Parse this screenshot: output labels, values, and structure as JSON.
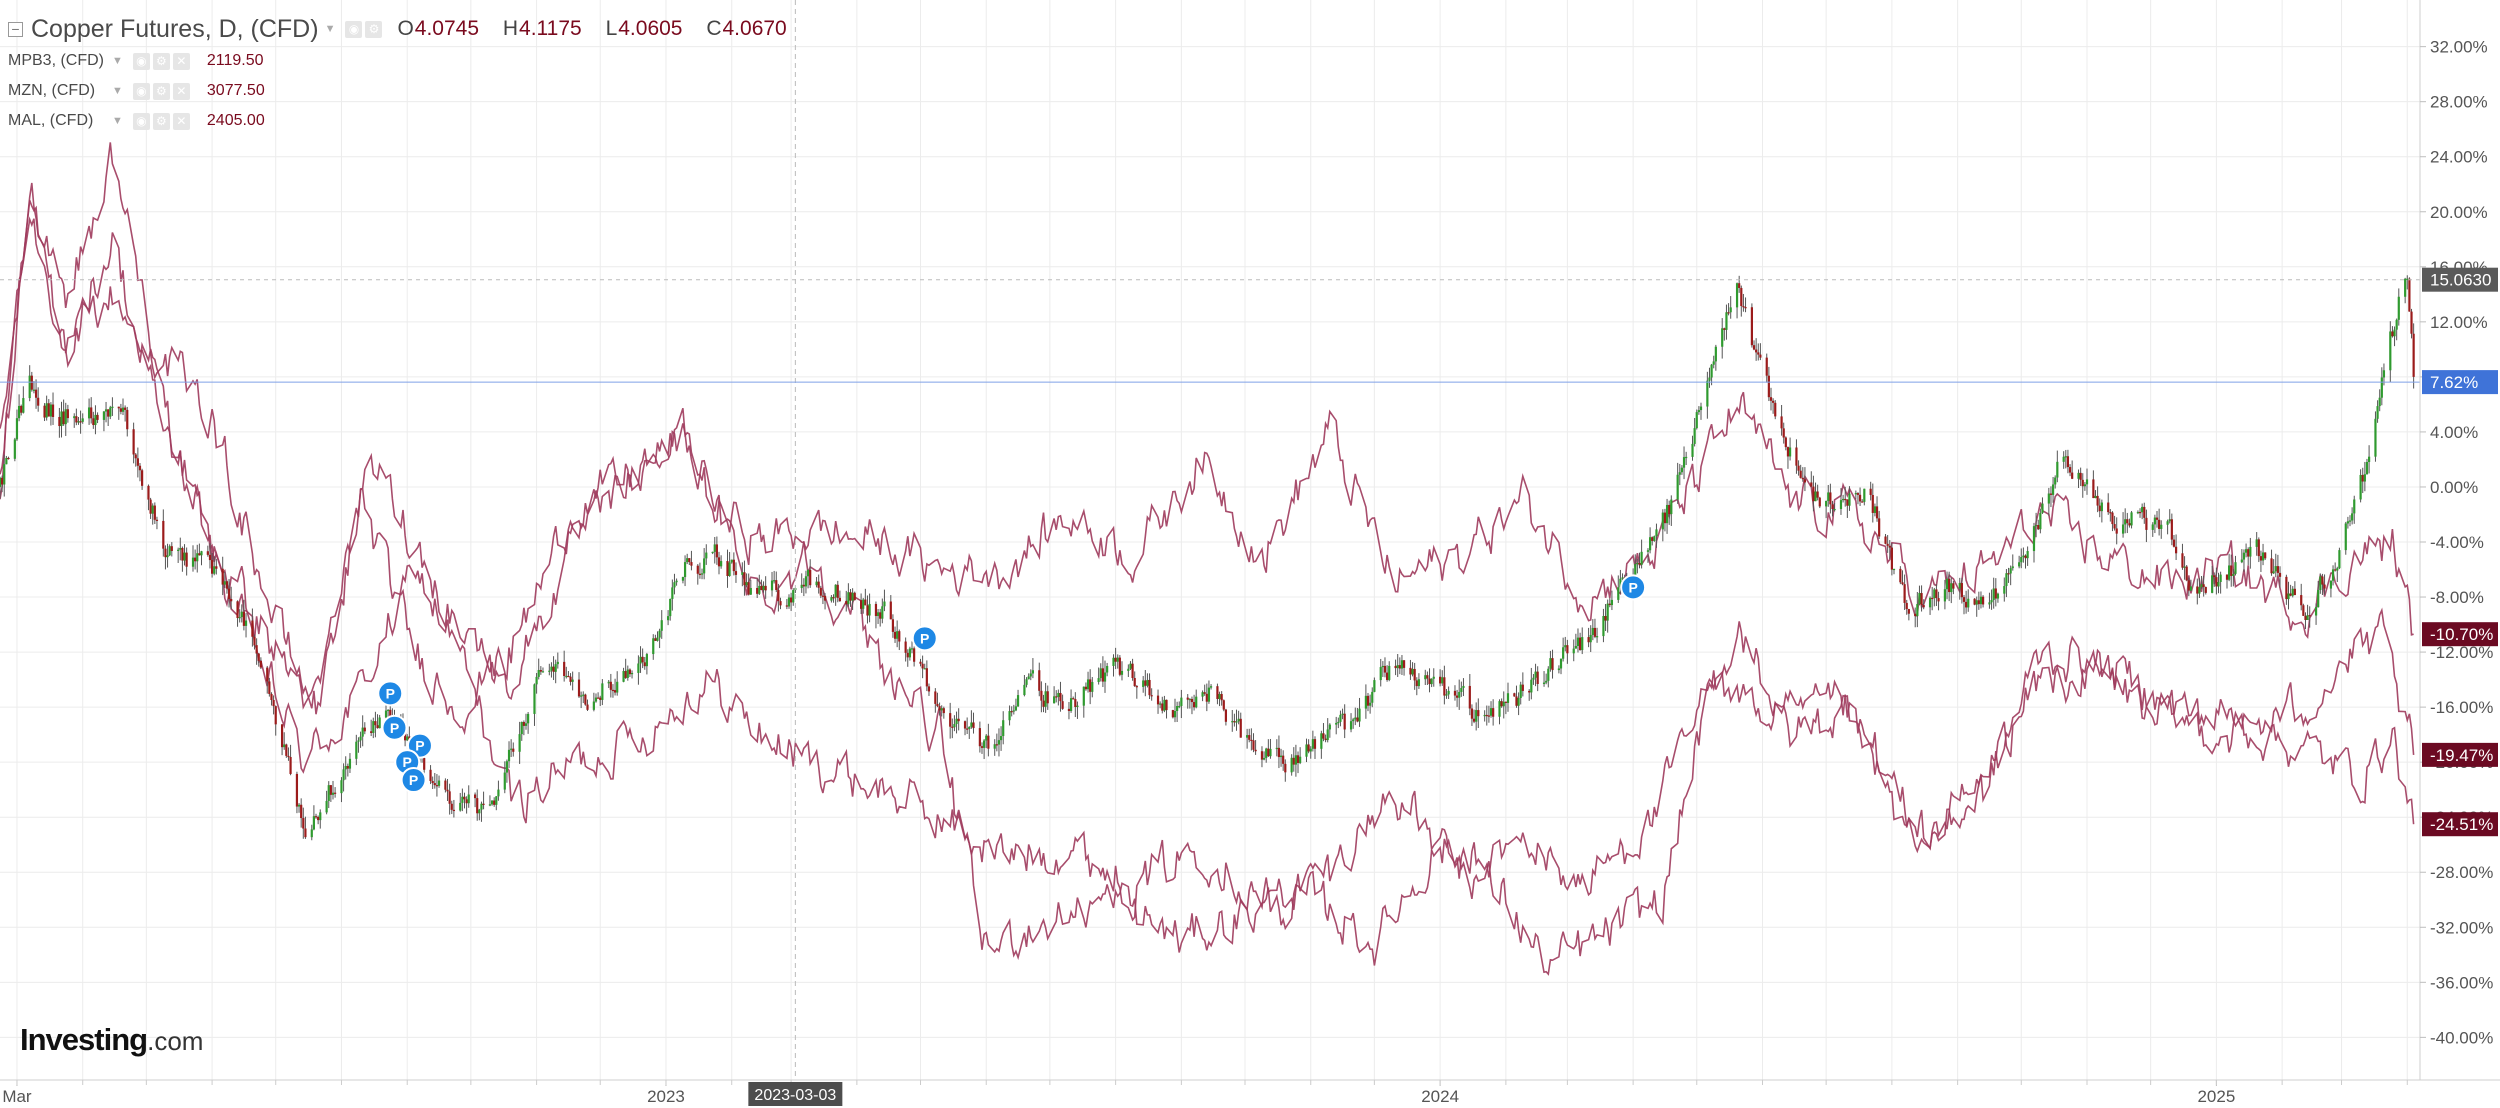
{
  "legend": {
    "main": {
      "title": "Copper Futures, D, (CFD)",
      "ohlc": [
        {
          "key": "O",
          "value": "4.0745"
        },
        {
          "key": "H",
          "value": "4.1175"
        },
        {
          "key": "L",
          "value": "4.0605"
        },
        {
          "key": "C",
          "value": "4.0670"
        }
      ]
    },
    "comparisons": [
      {
        "title": "MPB3, (CFD)",
        "value": "2119.50"
      },
      {
        "title": "MZN, (CFD)",
        "value": "3077.50"
      },
      {
        "title": "MAL, (CFD)",
        "value": "2405.00"
      }
    ]
  },
  "logo": {
    "brand": "Investing",
    "suffix": ".com"
  },
  "crosshair_label": "2023-03-03",
  "colors": {
    "up": "#2f9a2f",
    "down": "#9b1b1b",
    "wick": "#555555",
    "compare": "#9e3a5c",
    "grid": "#ececec",
    "axis_text": "#555555",
    "last_price_bg": "#5a5a5a",
    "pct_marker_bg": "#6b0a22",
    "blue_marker_bg": "#3f73d8",
    "pin": "#1e88e5"
  },
  "chart_data": {
    "type": "candlestick",
    "symbol": "Copper Futures, D, (CFD)",
    "y_axis": {
      "label_type": "percent-change",
      "ylim": [
        -41.5,
        33.5
      ],
      "ticks": [
        "32.00%",
        "28.00%",
        "24.00%",
        "20.00%",
        "16.00%",
        "12.00%",
        "8.00%",
        "4.00%",
        "0.00%",
        "-4.00%",
        "-8.00%",
        "-12.00%",
        "-16.00%",
        "-20.00%",
        "-24.00%",
        "-28.00%",
        "-32.00%",
        "-36.00%",
        "-40.00%"
      ]
    },
    "x_axis": {
      "labels": [
        "Mar",
        "2023",
        "2024",
        "2025"
      ],
      "range": [
        "2022-02-21",
        "2025-04-07"
      ]
    },
    "gridlines": true,
    "series_keypoints": {
      "copper": [
        [
          "2022-02-21",
          0
        ],
        [
          "2022-03-07",
          8
        ],
        [
          "2022-03-20",
          5
        ],
        [
          "2022-04-20",
          6
        ],
        [
          "2022-05-10",
          -5
        ],
        [
          "2022-06-05",
          -6
        ],
        [
          "2022-06-20",
          -11
        ],
        [
          "2022-07-15",
          -25
        ],
        [
          "2022-08-10",
          -18
        ],
        [
          "2022-08-25",
          -17
        ],
        [
          "2022-09-15",
          -22
        ],
        [
          "2022-10-10",
          -24
        ],
        [
          "2022-11-05",
          -12
        ],
        [
          "2022-11-25",
          -15
        ],
        [
          "2022-12-20",
          -13
        ],
        [
          "2023-01-10",
          -6
        ],
        [
          "2023-01-25",
          -5
        ],
        [
          "2023-02-15",
          -8
        ],
        [
          "2023-03-10",
          -7
        ],
        [
          "2023-04-15",
          -9
        ],
        [
          "2023-05-15",
          -17
        ],
        [
          "2023-06-01",
          -19
        ],
        [
          "2023-06-20",
          -14
        ],
        [
          "2023-07-10",
          -16
        ],
        [
          "2023-08-01",
          -13
        ],
        [
          "2023-08-25",
          -16
        ],
        [
          "2023-09-15",
          -15
        ],
        [
          "2023-10-05",
          -19
        ],
        [
          "2023-10-25",
          -20
        ],
        [
          "2023-11-20",
          -17
        ],
        [
          "2023-12-10",
          -13
        ],
        [
          "2024-01-05",
          -15
        ],
        [
          "2024-01-25",
          -17
        ],
        [
          "2024-02-15",
          -14
        ],
        [
          "2024-03-10",
          -11
        ],
        [
          "2024-03-25",
          -8
        ],
        [
          "2024-04-20",
          -1
        ],
        [
          "2024-05-10",
          10
        ],
        [
          "2024-05-20",
          14
        ],
        [
          "2024-06-05",
          6
        ],
        [
          "2024-06-25",
          -1
        ],
        [
          "2024-07-20",
          0
        ],
        [
          "2024-08-10",
          -10
        ],
        [
          "2024-08-20",
          -7
        ],
        [
          "2024-09-15",
          -8
        ],
        [
          "2024-10-01",
          -6
        ],
        [
          "2024-10-20",
          2
        ],
        [
          "2024-11-10",
          -2
        ],
        [
          "2024-12-10",
          -3
        ],
        [
          "2024-12-20",
          -8
        ],
        [
          "2025-01-05",
          -6
        ],
        [
          "2025-01-20",
          -5
        ],
        [
          "2025-02-10",
          -9
        ],
        [
          "2025-02-25",
          -6
        ],
        [
          "2025-03-10",
          0
        ],
        [
          "2025-03-26",
          12
        ],
        [
          "2025-04-01",
          16
        ],
        [
          "2025-04-04",
          8
        ]
      ],
      "MPB3": [
        [
          "2022-02-21",
          3
        ],
        [
          "2022-03-07",
          20
        ],
        [
          "2022-03-25",
          10
        ],
        [
          "2022-04-15",
          14
        ],
        [
          "2022-05-01",
          10
        ],
        [
          "2022-06-01",
          -5
        ],
        [
          "2022-07-15",
          -20
        ],
        [
          "2022-08-10",
          -15
        ],
        [
          "2022-09-05",
          -6
        ],
        [
          "2022-09-25",
          -12
        ],
        [
          "2022-10-20",
          -23
        ],
        [
          "2022-11-20",
          -20
        ],
        [
          "2022-12-20",
          -18
        ],
        [
          "2023-01-20",
          -14
        ],
        [
          "2023-02-15",
          -18
        ],
        [
          "2023-03-10",
          -20
        ],
        [
          "2023-04-15",
          -22
        ],
        [
          "2023-05-20",
          -25
        ],
        [
          "2023-06-10",
          -27
        ],
        [
          "2023-07-10",
          -26
        ],
        [
          "2023-08-10",
          -29
        ],
        [
          "2023-09-10",
          -26
        ],
        [
          "2023-10-10",
          -30
        ],
        [
          "2023-11-10",
          -28
        ],
        [
          "2023-12-10",
          -22
        ],
        [
          "2024-01-10",
          -28
        ],
        [
          "2024-02-10",
          -26
        ],
        [
          "2024-03-10",
          -29
        ],
        [
          "2024-04-10",
          -24
        ],
        [
          "2024-05-10",
          -14
        ],
        [
          "2024-05-20",
          -10
        ],
        [
          "2024-06-10",
          -17
        ],
        [
          "2024-07-10",
          -16
        ],
        [
          "2024-08-10",
          -26
        ],
        [
          "2024-09-10",
          -22
        ],
        [
          "2024-10-10",
          -14
        ],
        [
          "2024-11-10",
          -14
        ],
        [
          "2024-12-10",
          -17
        ],
        [
          "2025-01-10",
          -18
        ],
        [
          "2025-02-10",
          -16
        ],
        [
          "2025-03-01",
          -13
        ],
        [
          "2025-03-20",
          -11
        ],
        [
          "2025-04-04",
          -19.47
        ]
      ],
      "MZN": [
        [
          "2022-02-21",
          0
        ],
        [
          "2022-03-07",
          22
        ],
        [
          "2022-03-25",
          14
        ],
        [
          "2022-04-15",
          24
        ],
        [
          "2022-05-05",
          10
        ],
        [
          "2022-06-01",
          5
        ],
        [
          "2022-07-01",
          -10
        ],
        [
          "2022-07-20",
          -16
        ],
        [
          "2022-08-15",
          2
        ],
        [
          "2022-09-01",
          -3
        ],
        [
          "2022-09-25",
          -10
        ],
        [
          "2022-10-20",
          -14
        ],
        [
          "2022-11-20",
          -4
        ],
        [
          "2022-12-20",
          1
        ],
        [
          "2023-01-10",
          4
        ],
        [
          "2023-01-25",
          -2
        ],
        [
          "2023-02-15",
          -8
        ],
        [
          "2023-03-10",
          -5
        ],
        [
          "2023-04-10",
          -12
        ],
        [
          "2023-05-10",
          -18
        ],
        [
          "2023-06-01",
          -34
        ],
        [
          "2023-06-20",
          -32
        ],
        [
          "2023-07-10",
          -31
        ],
        [
          "2023-08-01",
          -30
        ],
        [
          "2023-09-01",
          -33
        ],
        [
          "2023-10-01",
          -31
        ],
        [
          "2023-11-01",
          -30
        ],
        [
          "2023-12-01",
          -33
        ],
        [
          "2024-01-01",
          -26
        ],
        [
          "2024-02-01",
          -30
        ],
        [
          "2024-02-20",
          -35
        ],
        [
          "2024-03-15",
          -33
        ],
        [
          "2024-04-15",
          -30
        ],
        [
          "2024-05-05",
          -16
        ],
        [
          "2024-05-20",
          -14
        ],
        [
          "2024-06-15",
          -18
        ],
        [
          "2024-07-15",
          -16
        ],
        [
          "2024-08-15",
          -26
        ],
        [
          "2024-09-15",
          -22
        ],
        [
          "2024-10-10",
          -12
        ],
        [
          "2024-11-10",
          -13
        ],
        [
          "2024-12-10",
          -16
        ],
        [
          "2025-01-10",
          -17
        ],
        [
          "2025-02-10",
          -19
        ],
        [
          "2025-03-10",
          -21
        ],
        [
          "2025-03-25",
          -18
        ],
        [
          "2025-04-04",
          -24.51
        ]
      ],
      "MAL": [
        [
          "2022-02-21",
          0
        ],
        [
          "2022-03-07",
          20
        ],
        [
          "2022-03-25",
          10
        ],
        [
          "2022-04-15",
          18
        ],
        [
          "2022-05-05",
          6
        ],
        [
          "2022-06-01",
          -4
        ],
        [
          "2022-07-01",
          -12
        ],
        [
          "2022-07-20",
          -16
        ],
        [
          "2022-08-10",
          -1
        ],
        [
          "2022-09-05",
          -12
        ],
        [
          "2022-09-25",
          -16
        ],
        [
          "2022-10-20",
          -12
        ],
        [
          "2022-11-20",
          -1
        ],
        [
          "2022-12-20",
          1
        ],
        [
          "2023-01-10",
          4
        ],
        [
          "2023-01-25",
          -2
        ],
        [
          "2023-02-15",
          -4
        ],
        [
          "2023-03-10",
          -3
        ],
        [
          "2023-04-10",
          -4
        ],
        [
          "2023-05-10",
          -6
        ],
        [
          "2023-06-10",
          -6
        ],
        [
          "2023-07-10",
          -2
        ],
        [
          "2023-08-10",
          -5
        ],
        [
          "2023-09-10",
          2
        ],
        [
          "2023-10-10",
          -5
        ],
        [
          "2023-11-10",
          4
        ],
        [
          "2023-12-10",
          -7
        ],
        [
          "2024-01-10",
          -5
        ],
        [
          "2024-02-10",
          -1
        ],
        [
          "2024-03-10",
          -8
        ],
        [
          "2024-04-10",
          -5
        ],
        [
          "2024-05-10",
          3
        ],
        [
          "2024-05-20",
          6
        ],
        [
          "2024-06-15",
          -1
        ],
        [
          "2024-07-15",
          -2
        ],
        [
          "2024-08-15",
          -8
        ],
        [
          "2024-09-15",
          -6
        ],
        [
          "2024-10-10",
          -2
        ],
        [
          "2024-11-10",
          -5
        ],
        [
          "2024-12-10",
          -7
        ],
        [
          "2025-01-10",
          -6
        ],
        [
          "2025-02-10",
          -9
        ],
        [
          "2025-03-10",
          -5
        ],
        [
          "2025-03-25",
          -4
        ],
        [
          "2025-04-04",
          -10.7
        ]
      ]
    },
    "markers": {
      "last_price": "15.0630",
      "current_pct": "7.62%",
      "compare_pcts": [
        "-10.70%",
        "-19.47%",
        "-24.51%"
      ]
    },
    "pin_events": [
      {
        "date": "2022-08-24",
        "value": -15,
        "label": "P"
      },
      {
        "date": "2022-08-26",
        "value": -17.5,
        "label": "P"
      },
      {
        "date": "2022-09-07",
        "value": -18.8,
        "label": "P"
      },
      {
        "date": "2022-09-01",
        "value": -20,
        "label": "P"
      },
      {
        "date": "2022-09-04",
        "value": -21.3,
        "label": "P"
      },
      {
        "date": "2023-05-03",
        "value": -11,
        "label": "P"
      },
      {
        "date": "2024-04-01",
        "value": -7.3,
        "label": "P"
      }
    ]
  }
}
